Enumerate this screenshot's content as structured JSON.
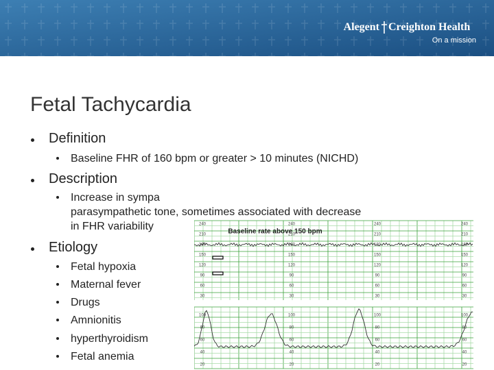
{
  "header": {
    "brand": [
      "Alegent",
      "Creighton Health"
    ],
    "tagline": "On a mission"
  },
  "slide": {
    "title": "Fetal Tachycardia",
    "bullets": [
      {
        "text": "Definition",
        "sub": [
          [
            "Baseline FHR of 160 bpm or greater > 10 minutes (NICHD)"
          ]
        ]
      },
      {
        "text": "Description",
        "sub": [
          [
            "Increase in sympa",
            "parasympathetic tone, sometimes associated with decrease",
            "in FHR variability"
          ]
        ]
      },
      {
        "text": "Etiology",
        "sub": [
          [
            "Fetal hypoxia"
          ],
          [
            "Maternal fever"
          ],
          [
            "Drugs"
          ],
          [
            "Amnionitis"
          ],
          [
            "hyperthyroidism"
          ],
          [
            "Fetal anemia"
          ]
        ]
      }
    ]
  },
  "strip": {
    "caption": "Baseline rate above 150 bpm",
    "fhr_scale": [
      240,
      210,
      180,
      150,
      120,
      90,
      60,
      30
    ],
    "uc_scale": [
      100,
      80,
      60,
      40,
      20
    ]
  }
}
